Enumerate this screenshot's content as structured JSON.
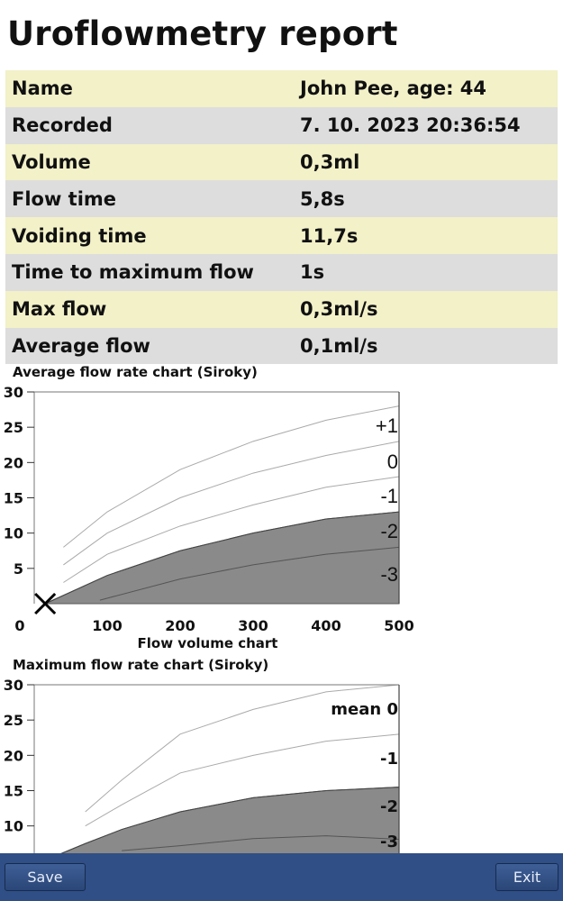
{
  "title": "Uroflowmetry report",
  "info_rows": [
    {
      "label": "Name",
      "value": "John Pee, age: 44"
    },
    {
      "label": "Recorded",
      "value": "7. 10. 2023 20:36:54"
    },
    {
      "label": "Volume",
      "value": "0,3ml"
    },
    {
      "label": "Flow time",
      "value": "5,8s"
    },
    {
      "label": "Voiding time",
      "value": "11,7s"
    },
    {
      "label": "Time to maximum flow",
      "value": "1s"
    },
    {
      "label": "Max flow",
      "value": "0,3ml/s"
    },
    {
      "label": "Average flow",
      "value": "0,1ml/s"
    }
  ],
  "footer": {
    "save_label": "Save",
    "exit_label": "Exit"
  },
  "colors": {
    "row_odd": "#f2f1c8",
    "row_even": "#dddddd",
    "shade": "#8a8a8a",
    "footer": "#2f4f86"
  },
  "chart_data": [
    {
      "type": "line",
      "title": "Average flow rate chart (Siroky)",
      "xlabel": "Flow volume chart",
      "xlim": [
        0,
        500
      ],
      "ylim": [
        0,
        30
      ],
      "x_ticks": [
        "0",
        "100",
        "200",
        "300",
        "400",
        "500"
      ],
      "y_ticks": [
        "30",
        "25",
        "20",
        "15",
        "10",
        "5"
      ],
      "series": [
        {
          "name": "+1",
          "x": [
            40,
            100,
            200,
            300,
            400,
            500
          ],
          "y": [
            8,
            13,
            19,
            23,
            26,
            28
          ]
        },
        {
          "name": "0",
          "x": [
            40,
            100,
            200,
            300,
            400,
            500
          ],
          "y": [
            5.5,
            10,
            15,
            18.5,
            21,
            23
          ]
        },
        {
          "name": "-1",
          "x": [
            40,
            100,
            200,
            300,
            400,
            500
          ],
          "y": [
            3,
            7,
            11,
            14,
            16.5,
            18
          ]
        },
        {
          "name": "-2",
          "x": [
            15,
            100,
            200,
            300,
            400,
            500
          ],
          "y": [
            0,
            4,
            7.5,
            10,
            12,
            13
          ]
        },
        {
          "name": "-3",
          "x": [
            90,
            200,
            300,
            400,
            500
          ],
          "y": [
            0.5,
            3.5,
            5.5,
            7,
            8
          ]
        }
      ],
      "marker": {
        "symbol": "X",
        "x": 15,
        "y": 0
      },
      "shaded_below": "-2"
    },
    {
      "type": "line",
      "title": "Maximum flow rate chart (Siroky)",
      "xlim": [
        0,
        500
      ],
      "ylim": [
        0,
        30
      ],
      "y_ticks": [
        "30",
        "25",
        "20",
        "15",
        "10"
      ],
      "series": [
        {
          "name": "mean 0",
          "x": [
            70,
            120,
            200,
            300,
            400,
            500
          ],
          "y": [
            12,
            16.5,
            23,
            26.5,
            29,
            30
          ]
        },
        {
          "name": "-1",
          "x": [
            70,
            120,
            200,
            300,
            400,
            500
          ],
          "y": [
            10,
            13,
            17.5,
            20,
            22,
            23
          ]
        },
        {
          "name": "-2",
          "x": [
            35,
            70,
            120,
            200,
            300,
            400,
            500
          ],
          "y": [
            6,
            7.5,
            9.5,
            12,
            14,
            15,
            15.5
          ]
        },
        {
          "name": "-3",
          "x": [
            120,
            200,
            300,
            400,
            500
          ],
          "y": [
            6.5,
            7.2,
            8.2,
            8.6,
            8.1
          ]
        }
      ],
      "shaded_below": "-2"
    }
  ]
}
